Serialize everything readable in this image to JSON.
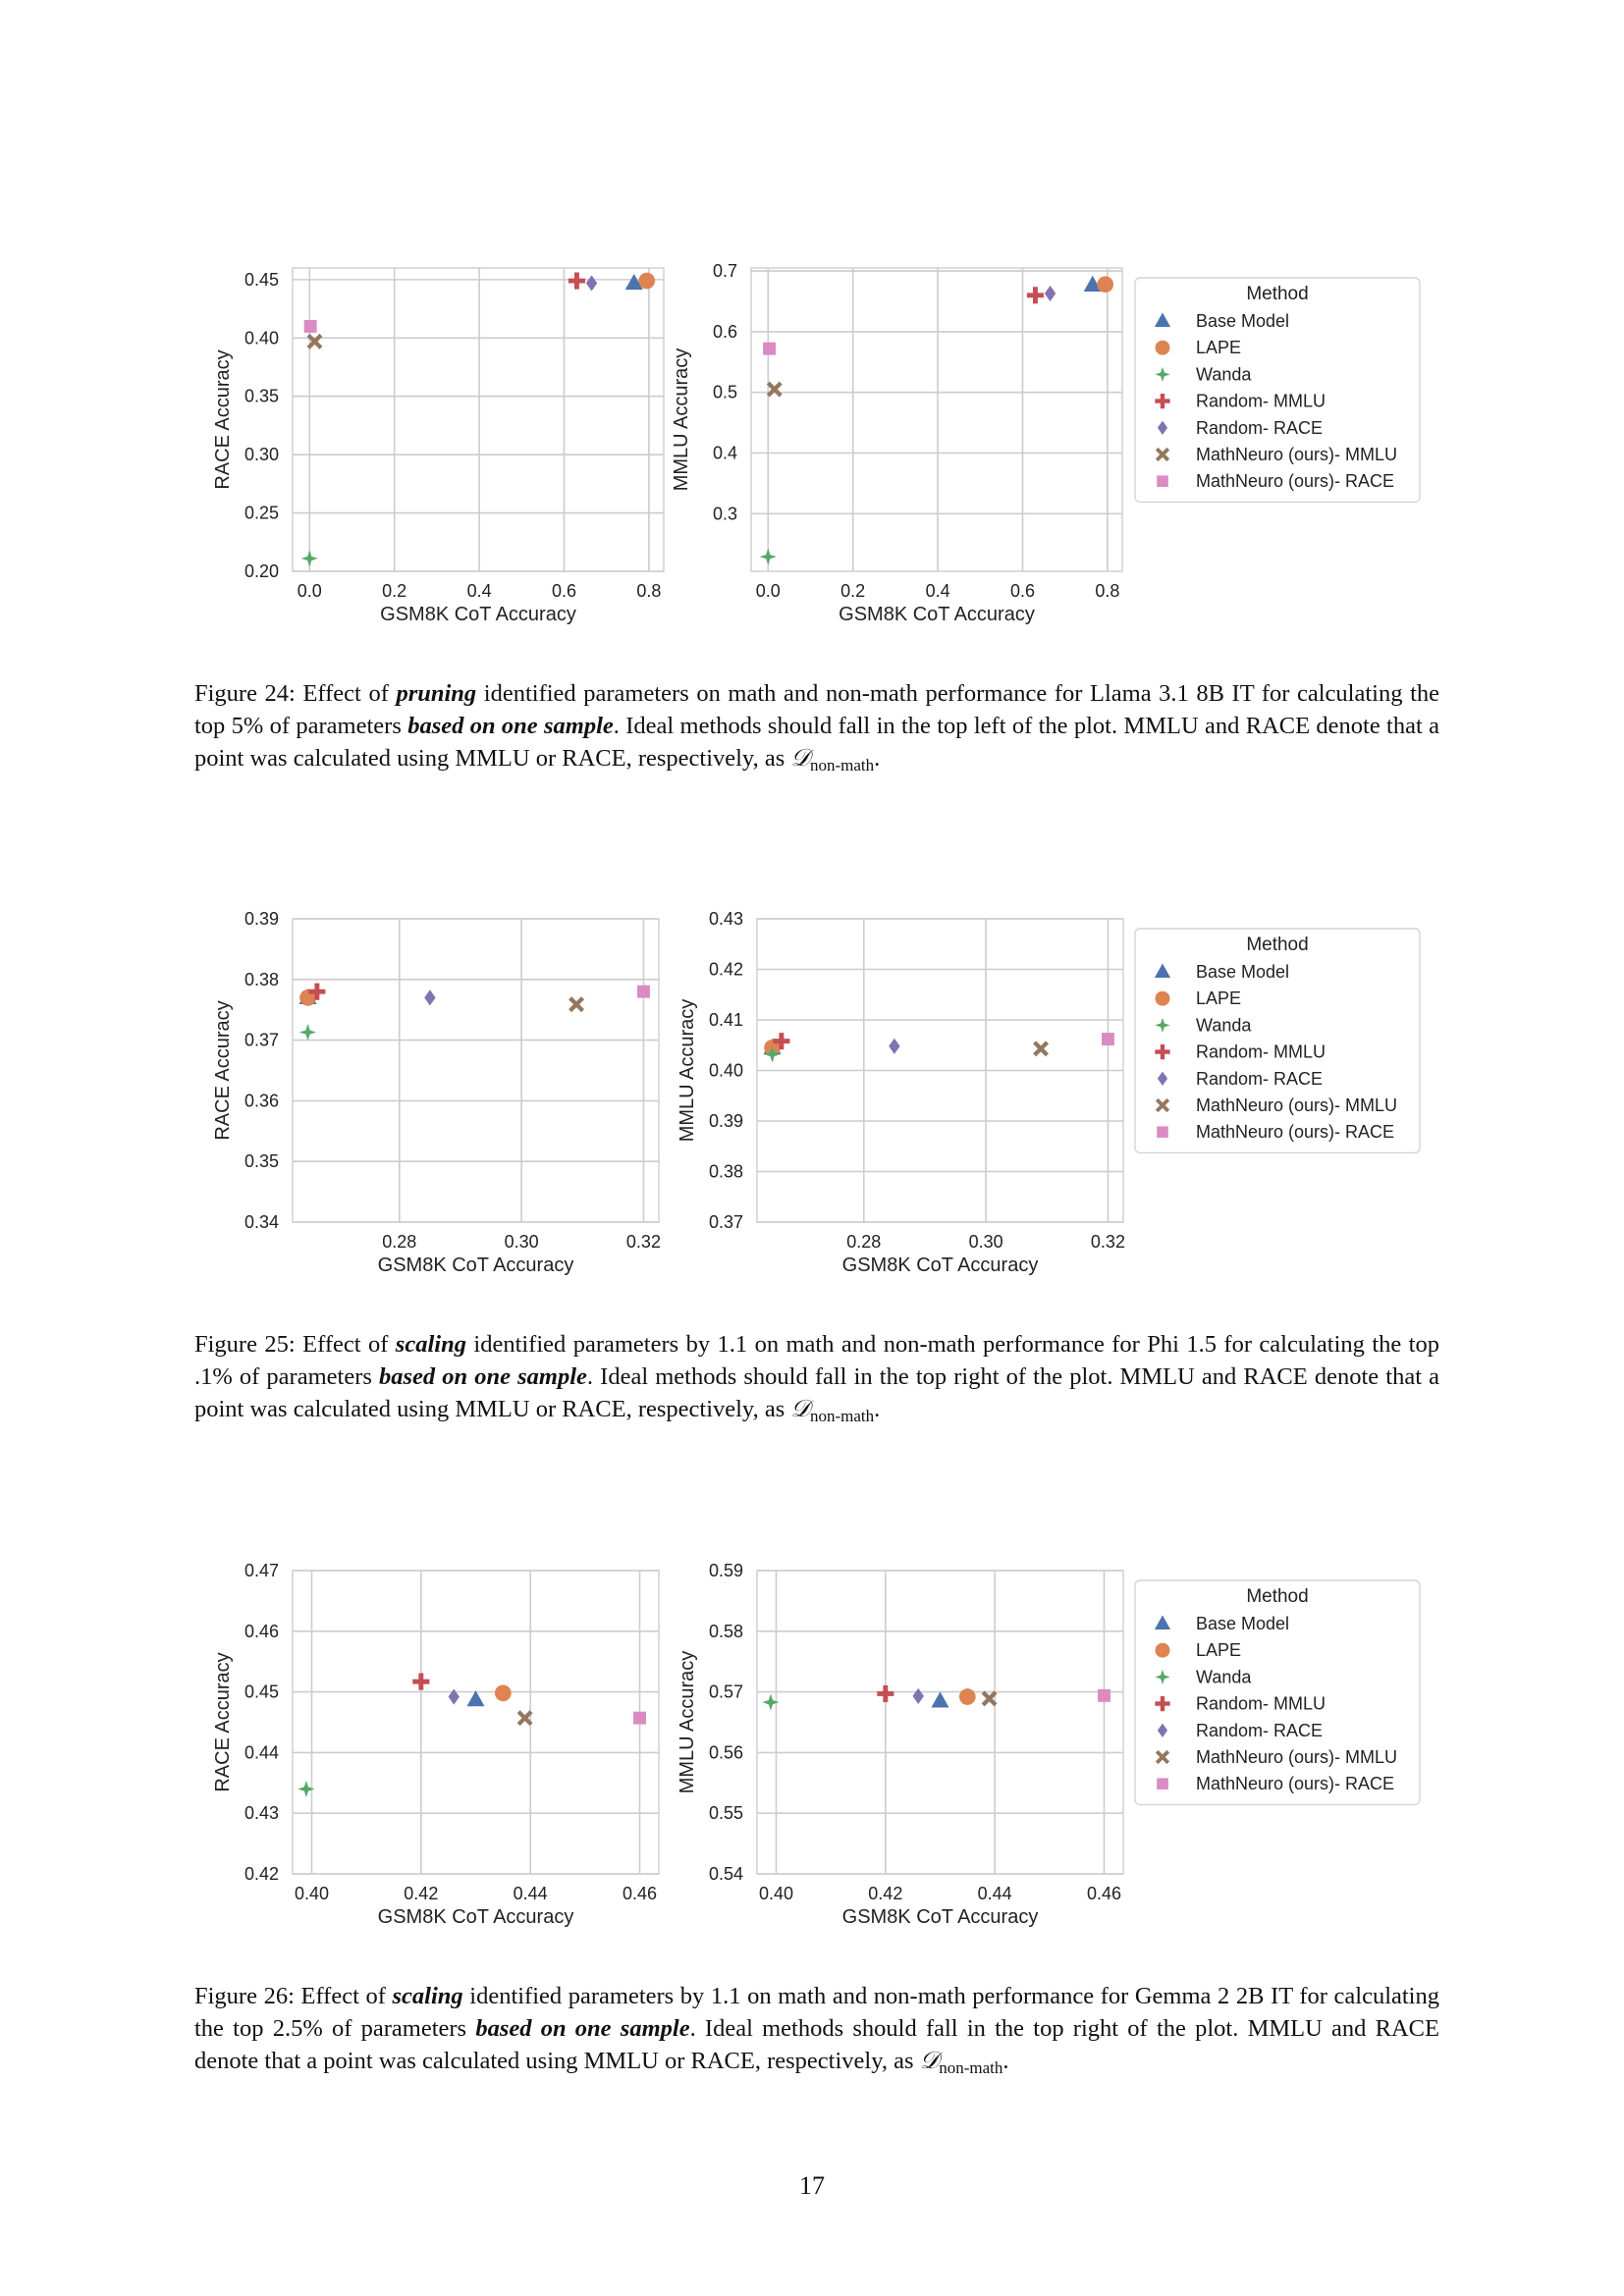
{
  "legend": {
    "title": "Method",
    "items": [
      {
        "label": "Base Model",
        "color": "#4c72b0",
        "marker": "triangle"
      },
      {
        "label": "LAPE",
        "color": "#dd8452",
        "marker": "circle"
      },
      {
        "label": "Wanda",
        "color": "#55a868",
        "marker": "star4"
      },
      {
        "label": "Random- MMLU",
        "color": "#c44e52",
        "marker": "plus"
      },
      {
        "label": "Random- RACE",
        "color": "#8172b3",
        "marker": "diamond"
      },
      {
        "label": "MathNeuro (ours)- MMLU",
        "color": "#937860",
        "marker": "x"
      },
      {
        "label": "MathNeuro (ours)- RACE",
        "color": "#da8bc3",
        "marker": "square"
      }
    ]
  },
  "chart_data": [
    {
      "figure": 24,
      "panel": "left",
      "type": "scatter",
      "xlabel": "GSM8K CoT Accuracy",
      "ylabel": "RACE Accuracy",
      "xlim": [
        -0.04,
        0.835
      ],
      "ylim": [
        0.2,
        0.46
      ],
      "xticks": [
        0.0,
        0.2,
        0.4,
        0.6,
        0.8
      ],
      "xtick_labels": [
        "0.0",
        "0.2",
        "0.4",
        "0.6",
        "0.8"
      ],
      "yticks": [
        0.2,
        0.25,
        0.3,
        0.35,
        0.4,
        0.45
      ],
      "ytick_labels": [
        "0.20",
        "0.25",
        "0.30",
        "0.35",
        "0.40",
        "0.45"
      ],
      "grid": true,
      "series": [
        {
          "name": "Base Model",
          "x": 0.765,
          "y": 0.447
        },
        {
          "name": "LAPE",
          "x": 0.795,
          "y": 0.449
        },
        {
          "name": "Wanda",
          "x": 0.0,
          "y": 0.211
        },
        {
          "name": "Random- MMLU",
          "x": 0.63,
          "y": 0.449
        },
        {
          "name": "Random- RACE",
          "x": 0.665,
          "y": 0.447
        },
        {
          "name": "MathNeuro (ours)- MMLU",
          "x": 0.012,
          "y": 0.397
        },
        {
          "name": "MathNeuro (ours)- RACE",
          "x": 0.002,
          "y": 0.41
        }
      ]
    },
    {
      "figure": 24,
      "panel": "right",
      "type": "scatter",
      "xlabel": "GSM8K CoT Accuracy",
      "ylabel": "MMLU Accuracy",
      "xlim": [
        -0.04,
        0.835
      ],
      "ylim": [
        0.205,
        0.705
      ],
      "xticks": [
        0.0,
        0.2,
        0.4,
        0.6,
        0.8
      ],
      "xtick_labels": [
        "0.0",
        "0.2",
        "0.4",
        "0.6",
        "0.8"
      ],
      "yticks": [
        0.3,
        0.4,
        0.5,
        0.6,
        0.7
      ],
      "ytick_labels": [
        "0.3",
        "0.4",
        "0.5",
        "0.6",
        "0.7"
      ],
      "grid": true,
      "series": [
        {
          "name": "Base Model",
          "x": 0.765,
          "y": 0.677
        },
        {
          "name": "LAPE",
          "x": 0.795,
          "y": 0.678
        },
        {
          "name": "Wanda",
          "x": 0.0,
          "y": 0.229
        },
        {
          "name": "Random- MMLU",
          "x": 0.63,
          "y": 0.66
        },
        {
          "name": "Random- RACE",
          "x": 0.665,
          "y": 0.663
        },
        {
          "name": "MathNeuro (ours)- MMLU",
          "x": 0.015,
          "y": 0.505
        },
        {
          "name": "MathNeuro (ours)- RACE",
          "x": 0.003,
          "y": 0.572
        }
      ]
    },
    {
      "figure": 25,
      "panel": "left",
      "type": "scatter",
      "xlabel": "GSM8K CoT Accuracy",
      "ylabel": "RACE Accuracy",
      "xlim": [
        0.2625,
        0.3225
      ],
      "ylim": [
        0.34,
        0.39
      ],
      "xticks": [
        0.28,
        0.3,
        0.32
      ],
      "xtick_labels": [
        "0.28",
        "0.30",
        "0.32"
      ],
      "yticks": [
        0.34,
        0.35,
        0.36,
        0.37,
        0.38,
        0.39
      ],
      "ytick_labels": [
        "0.34",
        "0.35",
        "0.36",
        "0.37",
        "0.38",
        "0.39"
      ],
      "grid": true,
      "series": [
        {
          "name": "Base Model",
          "x": 0.265,
          "y": 0.377
        },
        {
          "name": "LAPE",
          "x": 0.265,
          "y": 0.377
        },
        {
          "name": "Wanda",
          "x": 0.265,
          "y": 0.3713
        },
        {
          "name": "Random- MMLU",
          "x": 0.2665,
          "y": 0.378
        },
        {
          "name": "Random- RACE",
          "x": 0.285,
          "y": 0.377
        },
        {
          "name": "MathNeuro (ours)- MMLU",
          "x": 0.309,
          "y": 0.3759
        },
        {
          "name": "MathNeuro (ours)- RACE",
          "x": 0.32,
          "y": 0.378
        }
      ]
    },
    {
      "figure": 25,
      "panel": "right",
      "type": "scatter",
      "xlabel": "GSM8K CoT Accuracy",
      "ylabel": "MMLU Accuracy",
      "xlim": [
        0.2625,
        0.3225
      ],
      "ylim": [
        0.37,
        0.43
      ],
      "xticks": [
        0.28,
        0.3,
        0.32
      ],
      "xtick_labels": [
        "0.28",
        "0.30",
        "0.32"
      ],
      "yticks": [
        0.37,
        0.38,
        0.39,
        0.4,
        0.41,
        0.42,
        0.43
      ],
      "ytick_labels": [
        "0.37",
        "0.38",
        "0.39",
        "0.40",
        "0.41",
        "0.42",
        "0.43"
      ],
      "grid": true,
      "series": [
        {
          "name": "Base Model",
          "x": 0.265,
          "y": 0.4045
        },
        {
          "name": "LAPE",
          "x": 0.265,
          "y": 0.4045
        },
        {
          "name": "Wanda",
          "x": 0.265,
          "y": 0.4032
        },
        {
          "name": "Random- MMLU",
          "x": 0.2665,
          "y": 0.4058
        },
        {
          "name": "Random- RACE",
          "x": 0.285,
          "y": 0.4048
        },
        {
          "name": "MathNeuro (ours)- MMLU",
          "x": 0.309,
          "y": 0.4043
        },
        {
          "name": "MathNeuro (ours)- RACE",
          "x": 0.32,
          "y": 0.4062
        }
      ]
    },
    {
      "figure": 26,
      "panel": "left",
      "type": "scatter",
      "xlabel": "GSM8K CoT Accuracy",
      "ylabel": "RACE Accuracy",
      "xlim": [
        0.3965,
        0.4635
      ],
      "ylim": [
        0.42,
        0.47
      ],
      "xticks": [
        0.4,
        0.42,
        0.44,
        0.46
      ],
      "xtick_labels": [
        "0.40",
        "0.42",
        "0.44",
        "0.46"
      ],
      "yticks": [
        0.42,
        0.43,
        0.44,
        0.45,
        0.46,
        0.47
      ],
      "ytick_labels": [
        "0.42",
        "0.43",
        "0.44",
        "0.45",
        "0.46",
        "0.47"
      ],
      "grid": true,
      "series": [
        {
          "name": "Base Model",
          "x": 0.43,
          "y": 0.4487
        },
        {
          "name": "LAPE",
          "x": 0.435,
          "y": 0.4498
        },
        {
          "name": "Wanda",
          "x": 0.399,
          "y": 0.434
        },
        {
          "name": "Random- MMLU",
          "x": 0.42,
          "y": 0.4517
        },
        {
          "name": "Random- RACE",
          "x": 0.426,
          "y": 0.4492
        },
        {
          "name": "MathNeuro (ours)- MMLU",
          "x": 0.439,
          "y": 0.4457
        },
        {
          "name": "MathNeuro (ours)- RACE",
          "x": 0.46,
          "y": 0.4457
        }
      ]
    },
    {
      "figure": 26,
      "panel": "right",
      "type": "scatter",
      "xlabel": "GSM8K CoT Accuracy",
      "ylabel": "MMLU Accuracy",
      "xlim": [
        0.3965,
        0.4635
      ],
      "ylim": [
        0.54,
        0.59
      ],
      "xticks": [
        0.4,
        0.42,
        0.44,
        0.46
      ],
      "xtick_labels": [
        "0.40",
        "0.42",
        "0.44",
        "0.46"
      ],
      "yticks": [
        0.54,
        0.55,
        0.56,
        0.57,
        0.58,
        0.59
      ],
      "ytick_labels": [
        "0.54",
        "0.55",
        "0.56",
        "0.57",
        "0.58",
        "0.59"
      ],
      "grid": true,
      "series": [
        {
          "name": "Base Model",
          "x": 0.43,
          "y": 0.5685
        },
        {
          "name": "LAPE",
          "x": 0.435,
          "y": 0.5692
        },
        {
          "name": "Wanda",
          "x": 0.399,
          "y": 0.5683
        },
        {
          "name": "Random- MMLU",
          "x": 0.42,
          "y": 0.5697
        },
        {
          "name": "Random- RACE",
          "x": 0.426,
          "y": 0.5693
        },
        {
          "name": "MathNeuro (ours)- MMLU",
          "x": 0.439,
          "y": 0.5689
        },
        {
          "name": "MathNeuro (ours)- RACE",
          "x": 0.46,
          "y": 0.5694
        }
      ]
    }
  ],
  "captions": {
    "fig24": {
      "label": "Figure 24:",
      "t1": " Effect of ",
      "b1": "pruning",
      "t2": " identified parameters on math and non-math performance for Llama 3.1 8B IT for calculating the top 5% of parameters ",
      "b2": "based on one sample",
      "t3": ". Ideal methods should fall in the top left of the plot. MMLU and RACE denote that a point was calculated using MMLU or RACE, respectively, as ",
      "d": "𝒟",
      "sub": "non-math",
      "end": "."
    },
    "fig25": {
      "label": "Figure 25:",
      "t1": " Effect of ",
      "b1": "scaling",
      "t2": " identified parameters by 1.1 on math and non-math performance for Phi 1.5 for calculating the top .1% of parameters ",
      "b2": "based on one sample",
      "t3": ". Ideal methods should fall in the top right of the plot. MMLU and RACE denote that a point was calculated using MMLU or RACE, respectively, as ",
      "d": "𝒟",
      "sub": "non-math",
      "end": "."
    },
    "fig26": {
      "label": "Figure 26:",
      "t1": " Effect of ",
      "b1": "scaling",
      "t2": " identified parameters by 1.1 on math and non-math performance for Gemma 2 2B IT for calculating the top 2.5% of parameters ",
      "b2": "based on one sample",
      "t3": ". Ideal methods should fall in the top right of the plot. MMLU and RACE denote that a point was calculated using MMLU or RACE, respectively, as ",
      "d": "𝒟",
      "sub": "non-math",
      "end": "."
    }
  },
  "page_number": "17"
}
